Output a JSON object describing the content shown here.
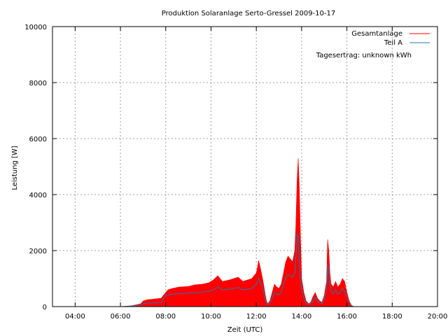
{
  "chart_data": {
    "type": "area",
    "title": "Produktion Solaranlage Serto-Gressel 2009-10-17",
    "xlabel": "Zeit (UTC)",
    "ylabel": "Leistung [W]",
    "x_unit": "hours UTC",
    "xlim": [
      3.0,
      20.0
    ],
    "ylim": [
      0,
      10000
    ],
    "x_ticks": [
      4,
      6,
      8,
      10,
      12,
      14,
      16,
      18,
      20
    ],
    "x_tick_labels": [
      "04:00",
      "06:00",
      "08:00",
      "10:00",
      "12:00",
      "14:00",
      "16:00",
      "18:00",
      "20:00"
    ],
    "y_ticks": [
      0,
      2000,
      4000,
      6000,
      8000,
      10000
    ],
    "y_tick_labels": [
      "0",
      "2000",
      "4000",
      "6000",
      "8000",
      "10000"
    ],
    "grid": true,
    "legend_position": "top-right",
    "annotation": "Tagesertrag: unknown kWh",
    "x": [
      6.0,
      6.5,
      6.9,
      7.0,
      7.2,
      7.4,
      7.6,
      7.8,
      8.0,
      8.1,
      8.3,
      8.6,
      9.0,
      9.3,
      9.6,
      9.9,
      10.1,
      10.3,
      10.5,
      10.8,
      11.0,
      11.2,
      11.4,
      11.6,
      11.8,
      12.0,
      12.05,
      12.1,
      12.2,
      12.3,
      12.4,
      12.45,
      12.5,
      12.6,
      12.7,
      12.8,
      12.9,
      13.0,
      13.1,
      13.2,
      13.3,
      13.4,
      13.5,
      13.6,
      13.7,
      13.75,
      13.8,
      13.85,
      13.9,
      13.95,
      14.0,
      14.1,
      14.2,
      14.3,
      14.4,
      14.5,
      14.6,
      14.7,
      14.8,
      14.9,
      15.0,
      15.1,
      15.15,
      15.2,
      15.25,
      15.3,
      15.4,
      15.5,
      15.6,
      15.7,
      15.8,
      15.9,
      16.0,
      16.1,
      16.2,
      16.3
    ],
    "series": [
      {
        "name": "Gesamtanlage",
        "color": "#ff0000",
        "values": [
          0,
          30,
          100,
          200,
          250,
          260,
          280,
          300,
          500,
          600,
          650,
          700,
          720,
          780,
          800,
          850,
          950,
          1100,
          900,
          950,
          1000,
          1050,
          900,
          950,
          1000,
          1200,
          1400,
          1650,
          1300,
          900,
          400,
          200,
          100,
          200,
          500,
          800,
          700,
          650,
          800,
          1200,
          1600,
          1800,
          1700,
          1600,
          2000,
          3000,
          4500,
          5300,
          4200,
          2500,
          1000,
          500,
          200,
          100,
          150,
          350,
          500,
          300,
          200,
          150,
          400,
          900,
          2400,
          2000,
          1200,
          800,
          700,
          900,
          700,
          800,
          1000,
          900,
          500,
          200,
          50,
          0
        ]
      },
      {
        "name": "Teil A",
        "color": "#1f78b4",
        "values": [
          0,
          15,
          50,
          100,
          120,
          130,
          140,
          150,
          380,
          420,
          440,
          460,
          480,
          500,
          520,
          550,
          600,
          700,
          600,
          620,
          650,
          680,
          600,
          620,
          650,
          800,
          900,
          1000,
          800,
          600,
          250,
          120,
          60,
          120,
          300,
          500,
          450,
          430,
          520,
          800,
          1000,
          1150,
          1100,
          1050,
          1200,
          1800,
          2600,
          2500,
          1500,
          900,
          600,
          300,
          120,
          60,
          100,
          220,
          320,
          200,
          130,
          100,
          260,
          600,
          1500,
          1300,
          800,
          550,
          450,
          600,
          450,
          500,
          650,
          550,
          320,
          130,
          30,
          0
        ]
      }
    ]
  }
}
